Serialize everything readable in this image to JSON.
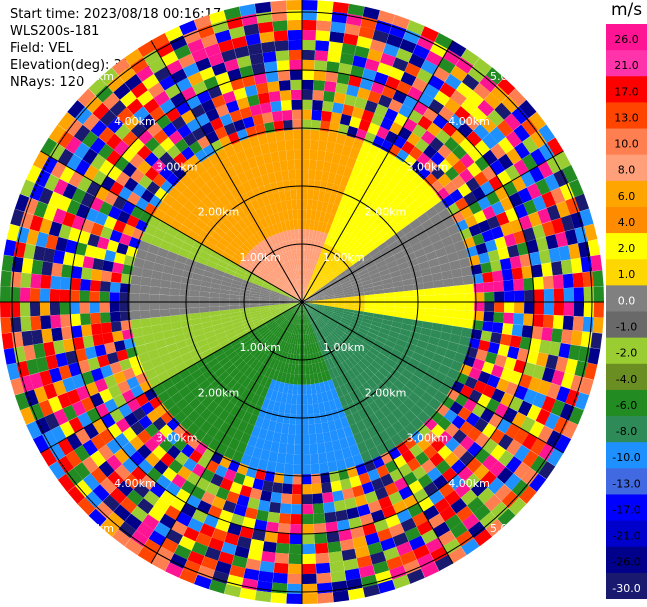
{
  "header": {
    "start_time": "Start time: 2023/08/18 00:16:17",
    "station": "WLS200s-181",
    "field": "Field: VEL",
    "elevation": "Elevation(deg): 35.30",
    "nrays": "NRays: 120"
  },
  "chart_data": {
    "type": "heatmap",
    "projection": "polar",
    "field": "VEL",
    "units": "m/s",
    "n_rays": 120,
    "range_rings_km": [
      1,
      2,
      3,
      4,
      5
    ],
    "range_ring_labels": [
      "1.00km",
      "2.00km",
      "3.00km",
      "4.00km",
      "5.00km"
    ],
    "colorbar": {
      "ticks": [
        26.0,
        21.0,
        17.0,
        13.0,
        10.0,
        8.0,
        6.0,
        4.0,
        2.0,
        1.0,
        0.0,
        -1.0,
        -2.0,
        -4.0,
        -6.0,
        -8.0,
        -10.0,
        -13.0,
        -17.0,
        -21.0,
        -26.0,
        -30.0
      ],
      "tick_labels": [
        "26.0",
        "21.0",
        "17.0",
        "13.0",
        "10.0",
        "8.0",
        "6.0",
        "4.0",
        "2.0",
        "1.0",
        "0.0",
        "-1.0",
        "-2.0",
        "-4.0",
        "-6.0",
        "-8.0",
        "-10.0",
        "-13.0",
        "-17.0",
        "-21.0",
        "-26.0",
        "-30.0"
      ],
      "colors": [
        "#ff1493",
        "#ff33aa",
        "#ff0000",
        "#ff4500",
        "#ff7f50",
        "#ffa07a",
        "#ffa500",
        "#ff8c00",
        "#ffff00",
        "#ffd700",
        "#808080",
        "#696969",
        "#9acd32",
        "#6b8e23",
        "#228b22",
        "#2e8b57",
        "#1e90ff",
        "#4169e1",
        "#0000ff",
        "#0000cd",
        "#00008b",
        "#191970"
      ]
    }
  }
}
